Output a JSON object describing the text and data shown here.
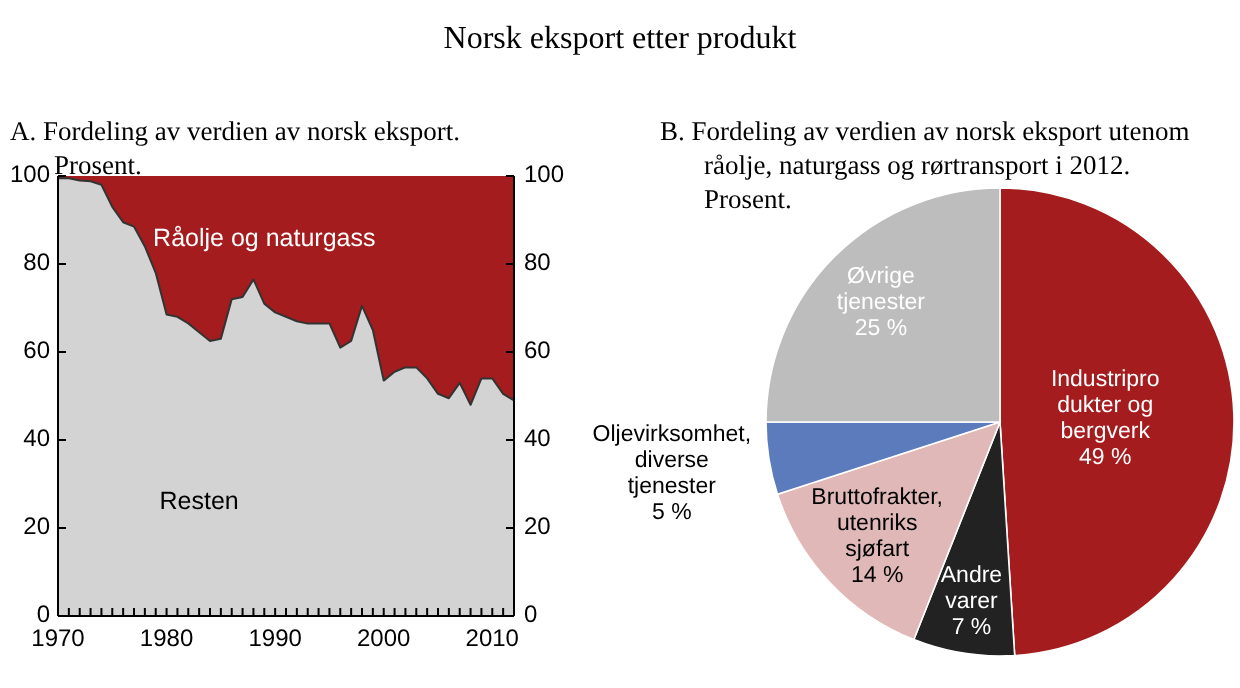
{
  "chart_data": [
    {
      "type": "area",
      "stacked": true,
      "title": "Norsk eksport etter produkt",
      "subtitle": "A. Fordeling av verdien av norsk eksport. Prosent.",
      "x": [
        1970,
        1971,
        1972,
        1973,
        1974,
        1975,
        1976,
        1977,
        1978,
        1979,
        1980,
        1981,
        1982,
        1983,
        1984,
        1985,
        1986,
        1987,
        1988,
        1989,
        1990,
        1991,
        1992,
        1993,
        1994,
        1995,
        1996,
        1997,
        1998,
        1999,
        2000,
        2001,
        2002,
        2003,
        2004,
        2005,
        2006,
        2007,
        2008,
        2009,
        2010,
        2011,
        2012
      ],
      "series": [
        {
          "name": "Resten",
          "color": "#d3d3d3",
          "values": [
            99.5,
            99.5,
            99,
            98.8,
            98,
            93,
            89.5,
            88.5,
            84,
            78,
            68.5,
            68,
            66.5,
            64.5,
            62.5,
            63,
            72,
            72.5,
            76.5,
            71,
            69,
            68,
            67,
            66.5,
            66.5,
            66.5,
            61,
            62.5,
            70.5,
            65,
            53.5,
            55.5,
            56.5,
            56.5,
            54,
            50.5,
            49.5,
            53,
            48,
            54,
            54,
            50.5,
            49
          ]
        },
        {
          "name": "Råolje og naturgass",
          "color": "#a51c1e",
          "values": [
            0.5,
            0.5,
            1,
            1.2,
            2,
            7,
            10.5,
            11.5,
            16,
            22,
            31.5,
            32,
            33.5,
            35.5,
            37.5,
            37,
            28,
            27.5,
            23.5,
            29,
            31,
            32,
            33,
            33.5,
            33.5,
            33.5,
            39,
            37.5,
            29.5,
            35,
            46.5,
            44.5,
            43.5,
            43.5,
            46,
            49.5,
            50.5,
            47,
            52,
            46,
            46,
            49.5,
            51
          ]
        }
      ],
      "xlim": [
        1970,
        2012
      ],
      "xticks": [
        1970,
        {
          "value": 1971,
          "label": null
        },
        {
          "value": 1972,
          "label": null
        },
        {
          "value": 1973,
          "label": null
        },
        {
          "value": 1974,
          "label": null
        },
        {
          "value": 1975,
          "label": null
        },
        {
          "value": 1976,
          "label": null
        },
        {
          "value": 1977,
          "label": null
        },
        {
          "value": 1978,
          "label": null
        },
        {
          "value": 1979,
          "label": null
        },
        1980,
        {
          "value": 1981,
          "label": null
        },
        {
          "value": 1982,
          "label": null
        },
        {
          "value": 1983,
          "label": null
        },
        {
          "value": 1984,
          "label": null
        },
        {
          "value": 1985,
          "label": null
        },
        {
          "value": 1986,
          "label": null
        },
        {
          "value": 1987,
          "label": null
        },
        {
          "value": 1988,
          "label": null
        },
        {
          "value": 1989,
          "label": null
        },
        1990,
        {
          "value": 1991,
          "label": null
        },
        {
          "value": 1992,
          "label": null
        },
        {
          "value": 1993,
          "label": null
        },
        {
          "value": 1994,
          "label": null
        },
        {
          "value": 1995,
          "label": null
        },
        {
          "value": 1996,
          "label": null
        },
        {
          "value": 1997,
          "label": null
        },
        {
          "value": 1998,
          "label": null
        },
        {
          "value": 1999,
          "label": null
        },
        2000,
        {
          "value": 2001,
          "label": null
        },
        {
          "value": 2002,
          "label": null
        },
        {
          "value": 2003,
          "label": null
        },
        {
          "value": 2004,
          "label": null
        },
        {
          "value": 2005,
          "label": null
        },
        {
          "value": 2006,
          "label": null
        },
        {
          "value": 2007,
          "label": null
        },
        {
          "value": 2008,
          "label": null
        },
        {
          "value": 2009,
          "label": null
        },
        2010,
        {
          "value": 2011,
          "label": null
        },
        {
          "value": 2012,
          "label": null
        }
      ],
      "ylim": [
        0,
        100
      ],
      "yticks": [
        0,
        20,
        40,
        60,
        80,
        100
      ],
      "y2lim": [
        0,
        100
      ],
      "y2ticks": [
        0,
        20,
        40,
        60,
        80,
        100
      ]
    },
    {
      "type": "pie",
      "subtitle": "B. Fordeling av verdien av norsk eksport utenom råolje, naturgass og rørtransport i 2012. Prosent.",
      "categories": [
        "Industriprodukter og bergverk",
        "Andre varer",
        "Bruttofrakter, utenriks sjøfart",
        "Oljevirksomhet, diverse tjenester",
        "Øvrige tjenester"
      ],
      "values": [
        49,
        7,
        14,
        5,
        25
      ],
      "colors": [
        "#a51c1e",
        "#222222",
        "#e0b8b8",
        "#5b7bbd",
        "#bdbdbd"
      ],
      "value_labels": [
        "49 %",
        "7 %",
        "14 %",
        "5 %",
        "25 %"
      ]
    }
  ]
}
